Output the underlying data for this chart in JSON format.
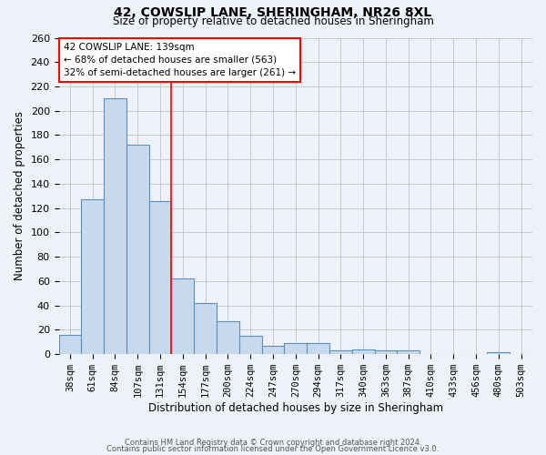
{
  "title1": "42, COWSLIP LANE, SHERINGHAM, NR26 8XL",
  "title2": "Size of property relative to detached houses in Sheringham",
  "xlabel": "Distribution of detached houses by size in Sheringham",
  "ylabel": "Number of detached properties",
  "categories": [
    "38sqm",
    "61sqm",
    "84sqm",
    "107sqm",
    "131sqm",
    "154sqm",
    "177sqm",
    "200sqm",
    "224sqm",
    "247sqm",
    "270sqm",
    "294sqm",
    "317sqm",
    "340sqm",
    "363sqm",
    "387sqm",
    "410sqm",
    "433sqm",
    "456sqm",
    "480sqm",
    "503sqm"
  ],
  "values": [
    16,
    127,
    210,
    172,
    126,
    62,
    42,
    27,
    15,
    7,
    9,
    9,
    3,
    4,
    3,
    3,
    0,
    0,
    0,
    2,
    0
  ],
  "bar_color": "#c9d9ed",
  "bar_edge_color": "#5a8fc0",
  "grid_color": "#c0c8d8",
  "background_color": "#eef2f8",
  "red_line_x": 4.5,
  "annotation_text": "42 COWSLIP LANE: 139sqm\n← 68% of detached houses are smaller (563)\n32% of semi-detached houses are larger (261) →",
  "annotation_box_color": "white",
  "annotation_box_edge": "red",
  "ylim": [
    0,
    260
  ],
  "yticks": [
    0,
    20,
    40,
    60,
    80,
    100,
    120,
    140,
    160,
    180,
    200,
    220,
    240,
    260
  ],
  "footer1": "Contains HM Land Registry data © Crown copyright and database right 2024.",
  "footer2": "Contains public sector information licensed under the Open Government Licence v3.0."
}
